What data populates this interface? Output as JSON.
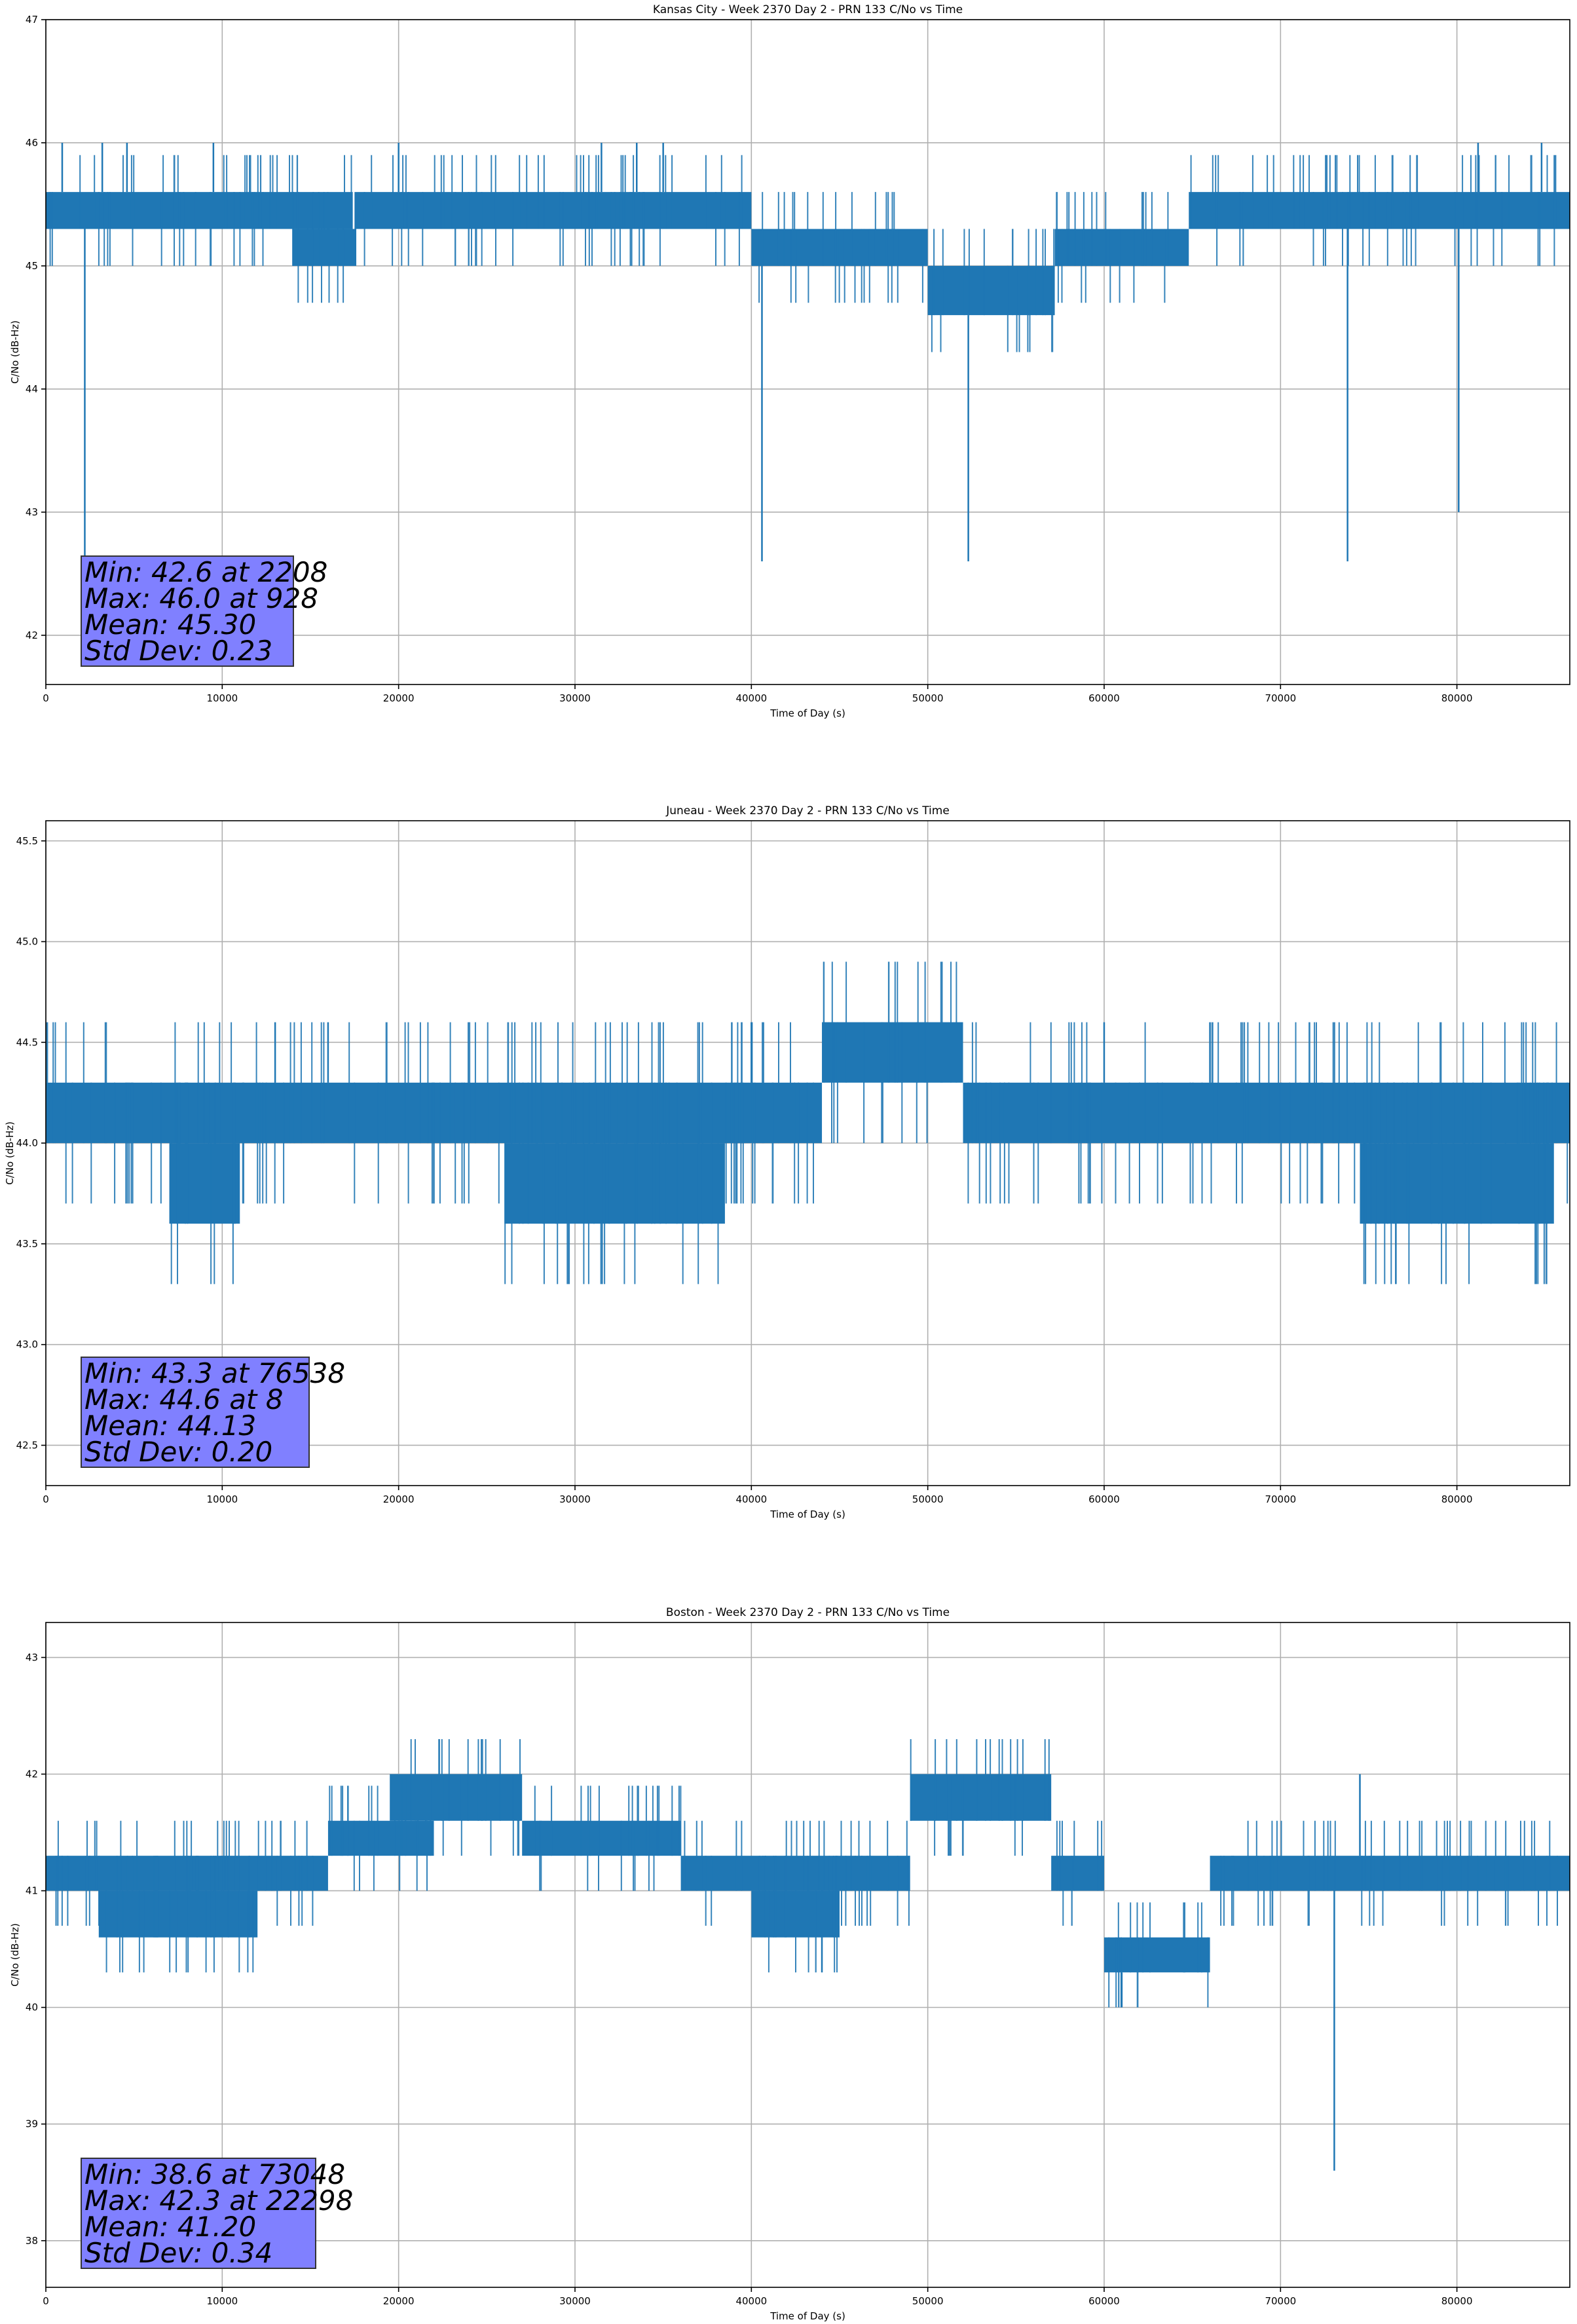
{
  "chart_data": [
    {
      "type": "line",
      "title": "Kansas City - Week 2370 Day 2 - PRN 133 C/No vs Time",
      "xlabel": "Time of Day (s)",
      "ylabel": "C/No (dB-Hz)",
      "xlim": [
        0,
        86400
      ],
      "ylim": [
        41.6,
        47
      ],
      "xticks": [
        "0",
        "10000",
        "20000",
        "30000",
        "40000",
        "50000",
        "60000",
        "70000",
        "80000"
      ],
      "yticks": [
        "42",
        "43",
        "44",
        "45",
        "46",
        "47"
      ],
      "grid": true,
      "series_color": "#1f77b4",
      "segments": [
        {
          "x": [
            0,
            17400
          ],
          "low": 45.3,
          "high": 45.6
        },
        {
          "x": 14000,
          "low": 45.0,
          "high": 45.3,
          "xend": 17600
        },
        {
          "x": [
            17500,
            40000
          ],
          "low": 45.3,
          "high": 45.6
        },
        {
          "x": [
            40000,
            50000
          ],
          "low": 45.0,
          "high": 45.3
        },
        {
          "x": [
            50000,
            57200
          ],
          "low": 44.6,
          "high": 45.0
        },
        {
          "x": [
            57200,
            64800
          ],
          "low": 45.0,
          "high": 45.3
        },
        {
          "x": [
            64800,
            86400
          ],
          "low": 45.3,
          "high": 45.6
        }
      ],
      "spikes": [
        {
          "x": 2208,
          "value": 42.6
        },
        {
          "x": 40600,
          "value": 42.6
        },
        {
          "x": 52300,
          "value": 42.6
        },
        {
          "x": 73800,
          "value": 42.6
        },
        {
          "x": 80100,
          "value": 43.0
        },
        {
          "x": 928,
          "value": 46.0
        },
        {
          "x": 3200,
          "value": 46.0
        },
        {
          "x": 4600,
          "value": 46.0
        },
        {
          "x": 9500,
          "value": 46.0
        },
        {
          "x": 20000,
          "value": 46.0
        },
        {
          "x": 31500,
          "value": 46.0
        },
        {
          "x": 33500,
          "value": 46.0
        },
        {
          "x": 35000,
          "value": 46.0
        },
        {
          "x": 81200,
          "value": 46.0
        },
        {
          "x": 84800,
          "value": 46.0
        }
      ],
      "stats": {
        "min": "Min: 42.6 at 2208",
        "max": "Max: 46.0 at 928",
        "mean": "Mean: 45.30",
        "std": "Std Dev: 0.23"
      }
    },
    {
      "type": "line",
      "title": "Juneau - Week 2370 Day 2 - PRN 133 C/No vs Time",
      "xlabel": "Time of Day (s)",
      "ylabel": "C/No (dB-Hz)",
      "xlim": [
        0,
        86400
      ],
      "ylim": [
        42.3,
        45.6
      ],
      "xticks": [
        "0",
        "10000",
        "20000",
        "30000",
        "40000",
        "50000",
        "60000",
        "70000",
        "80000"
      ],
      "yticks": [
        "42.5",
        "43.0",
        "43.5",
        "44.0",
        "44.5",
        "45.0",
        "45.5"
      ],
      "grid": true,
      "series_color": "#1f77b4",
      "segments": [
        {
          "x": [
            0,
            44000
          ],
          "low": 44.0,
          "high": 44.3
        },
        {
          "x": [
            44000,
            52000
          ],
          "low": 44.3,
          "high": 44.6
        },
        {
          "x": [
            52000,
            86400
          ],
          "low": 44.0,
          "high": 44.3
        },
        {
          "x": [
            7000,
            11000
          ],
          "low": 43.6,
          "high": 44.0
        },
        {
          "x": [
            26000,
            38500
          ],
          "low": 43.6,
          "high": 44.0
        },
        {
          "x": [
            74500,
            85500
          ],
          "low": 43.6,
          "high": 44.0
        }
      ],
      "spikes": [
        {
          "x": 76538,
          "value": 43.3
        },
        {
          "x": 8,
          "value": 44.6
        },
        {
          "x": 13000,
          "value": 44.6
        },
        {
          "x": 16000,
          "value": 44.6
        },
        {
          "x": 40000,
          "value": 44.6
        },
        {
          "x": 60000,
          "value": 44.6
        },
        {
          "x": 66000,
          "value": 44.6
        }
      ],
      "stats": {
        "min": "Min: 43.3 at 76538",
        "max": "Max: 44.6 at 8",
        "mean": "Mean: 44.13",
        "std": "Std Dev: 0.20"
      }
    },
    {
      "type": "line",
      "title": "Boston - Week 2370 Day 2 - PRN 133 C/No vs Time",
      "xlabel": "Time of Day (s)",
      "ylabel": "C/No (dB-Hz)",
      "xlim": [
        0,
        86400
      ],
      "ylim": [
        37.6,
        43.3
      ],
      "xticks": [
        "0",
        "10000",
        "20000",
        "30000",
        "40000",
        "50000",
        "60000",
        "70000",
        "80000"
      ],
      "yticks": [
        "38",
        "39",
        "40",
        "41",
        "42",
        "43"
      ],
      "grid": true,
      "series_color": "#1f77b4",
      "segments": [
        {
          "x": [
            0,
            16000
          ],
          "low": 41.0,
          "high": 41.3
        },
        {
          "x": [
            16000,
            22000
          ],
          "low": 41.3,
          "high": 41.6
        },
        {
          "x": [
            19500,
            27000
          ],
          "low": 41.6,
          "high": 42.0
        },
        {
          "x": [
            27000,
            36000
          ],
          "low": 41.3,
          "high": 41.6
        },
        {
          "x": [
            36000,
            49000
          ],
          "low": 41.0,
          "high": 41.3
        },
        {
          "x": [
            49000,
            57000
          ],
          "low": 41.6,
          "high": 42.0
        },
        {
          "x": [
            57000,
            60000
          ],
          "low": 41.0,
          "high": 41.3
        },
        {
          "x": [
            60000,
            66000
          ],
          "low": 40.3,
          "high": 40.6
        },
        {
          "x": [
            66000,
            86400
          ],
          "low": 41.0,
          "high": 41.3
        },
        {
          "x": [
            40000,
            45000
          ],
          "low": 40.6,
          "high": 41.0
        },
        {
          "x": [
            3000,
            12000
          ],
          "low": 40.6,
          "high": 41.0
        }
      ],
      "spikes": [
        {
          "x": 73048,
          "value": 38.6
        },
        {
          "x": 22298,
          "value": 42.3
        },
        {
          "x": 74500,
          "value": 42.0
        },
        {
          "x": 61000,
          "value": 40.0
        },
        {
          "x": 44000,
          "value": 40.3
        }
      ],
      "stats": {
        "min": "Min: 38.6 at 73048",
        "max": "Max: 42.3 at 22298",
        "mean": "Mean: 41.20",
        "std": "Std Dev: 0.34"
      }
    }
  ]
}
